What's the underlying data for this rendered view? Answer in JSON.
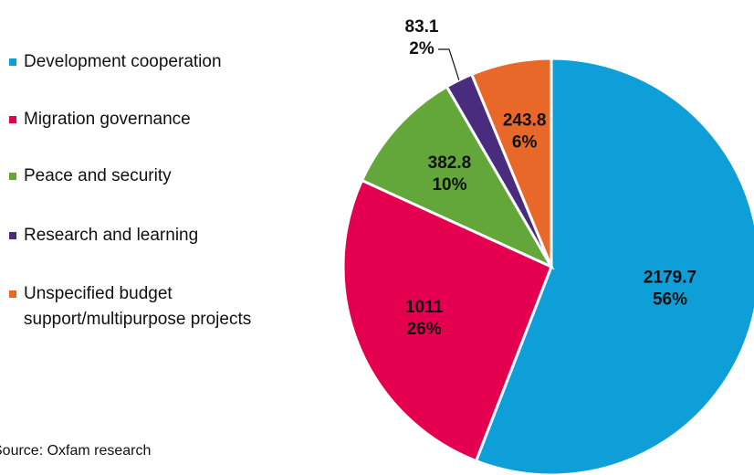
{
  "chart_data": {
    "type": "pie",
    "categories": [
      "Development cooperation",
      "Migration governance",
      "Peace and security",
      "Research and learning",
      "Unspecified budget support/multipurpose projects"
    ],
    "values": [
      2179.7,
      1011,
      382.8,
      83.1,
      243.8
    ],
    "percentages": [
      56,
      26,
      10,
      2,
      6
    ],
    "percentage_labels": [
      "56%",
      "26%",
      "10%",
      "2%",
      "6%"
    ],
    "colors": [
      "#0e9fd8",
      "#e4004f",
      "#63a63a",
      "#4a2c7e",
      "#e8682a"
    ],
    "legend": "left",
    "source": "Source: Oxfam research"
  }
}
